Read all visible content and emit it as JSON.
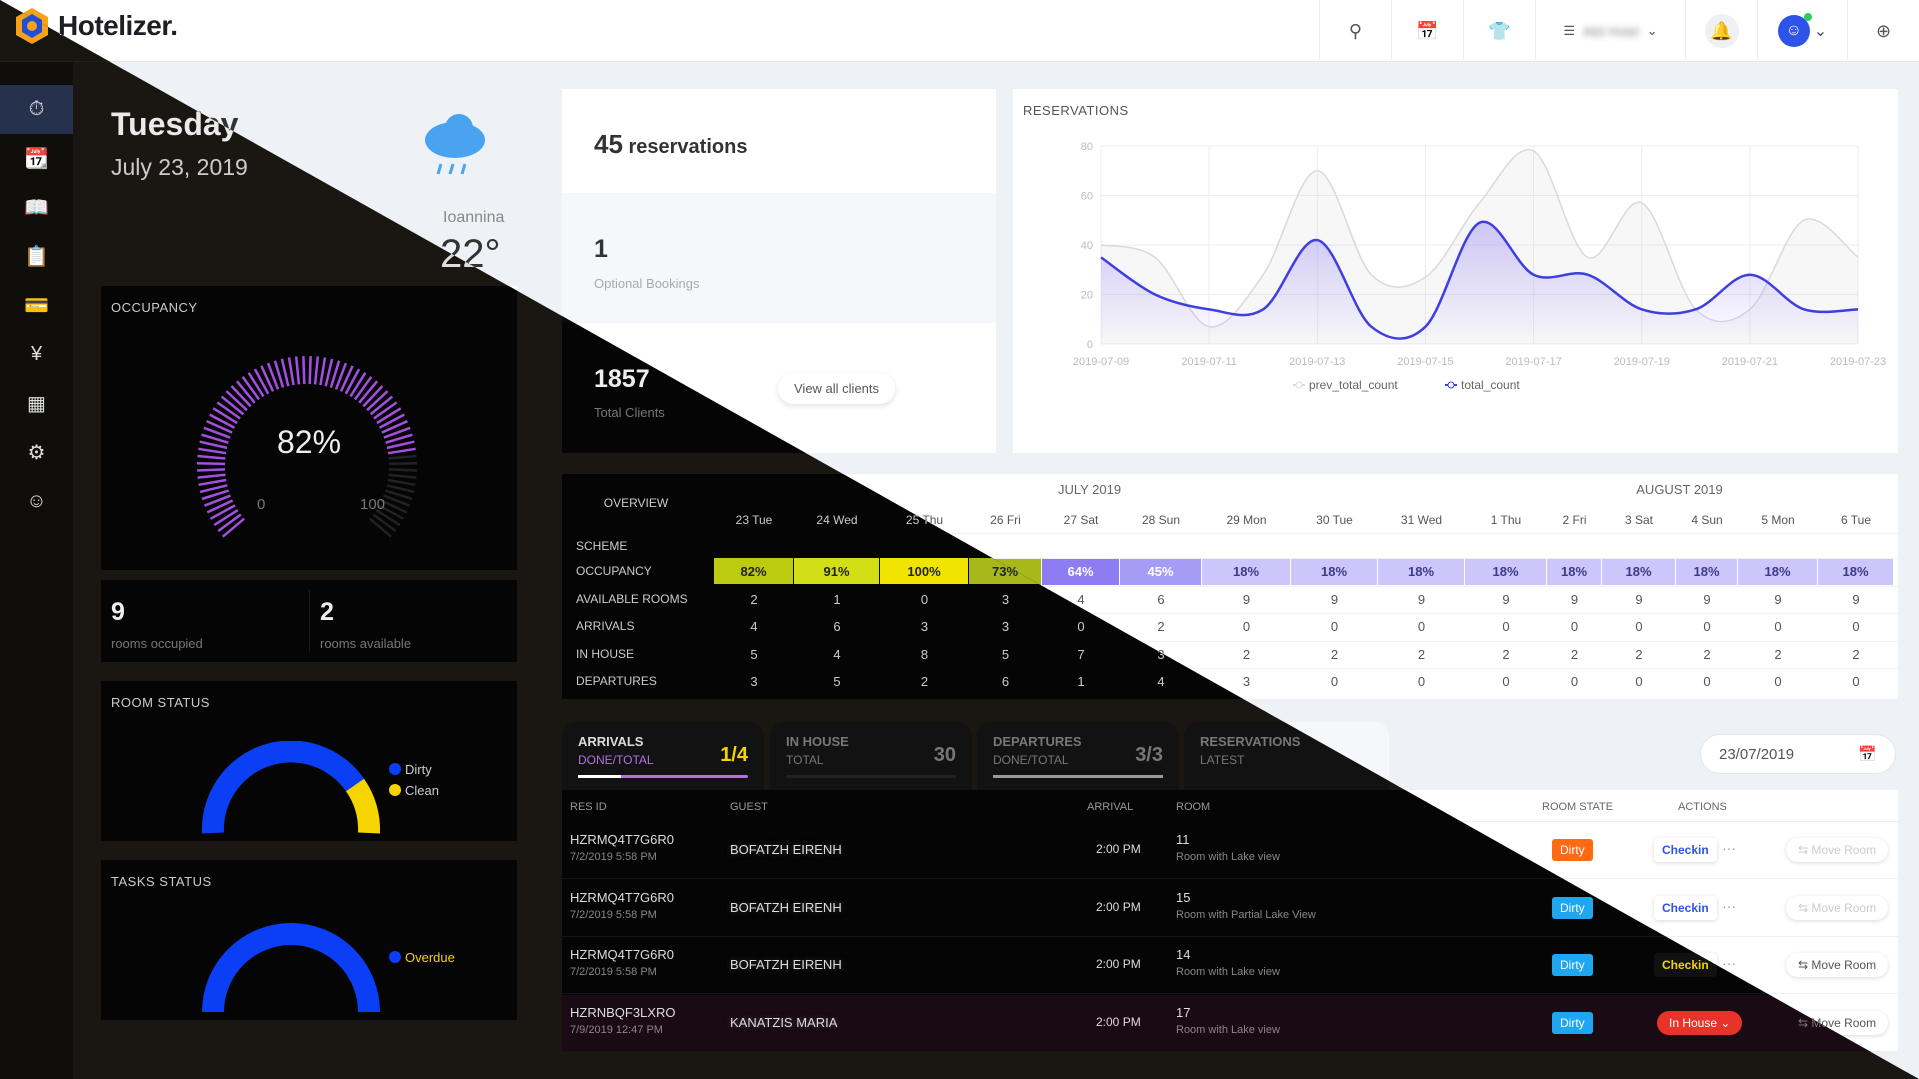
{
  "app": {
    "name": "Hotelizer."
  },
  "topbar": {
    "hotel_name": "Akti Hotel",
    "icons": [
      "search-icon",
      "calendar-icon",
      "shirt-icon",
      "list-icon",
      "bell-icon",
      "user-icon",
      "plus-circle-icon"
    ]
  },
  "sidebar": {
    "items": [
      "dashboard-icon",
      "calendar-icon",
      "book-icon",
      "booking-icon",
      "card-icon",
      "yen-icon",
      "grid-icon",
      "gear-icon",
      "user-icon"
    ]
  },
  "date_block": {
    "weekday": "Tuesday",
    "date": "July 23, 2019",
    "city": "Ioannina",
    "temperature": "22°",
    "weather_icon": "rain-cloud-icon"
  },
  "occupancy": {
    "label": "OCCUPANCY",
    "value": "82%",
    "value_num": 82,
    "min": "0",
    "max": "100"
  },
  "rooms": {
    "occupied": "9",
    "occupied_label": "rooms occupied",
    "available": "2",
    "available_label": "rooms available"
  },
  "room_status": {
    "label": "ROOM STATUS",
    "legend": [
      {
        "name": "Dirty",
        "color": "#0a3ff5"
      },
      {
        "name": "Clean",
        "color": "#f5d400"
      }
    ]
  },
  "tasks_status": {
    "label": "TASKS STATUS",
    "legend": [
      {
        "name": "Overdue",
        "color": "#0a3ff5"
      }
    ]
  },
  "summary": {
    "reservations_num": "45",
    "reservations_label": "reservations",
    "optional_num": "1",
    "optional_label": "Optional Bookings",
    "clients_num": "1857",
    "clients_label": "Total Clients",
    "view_all": "View all clients"
  },
  "chart_data": {
    "type": "line",
    "title": "RESERVATIONS",
    "x": [
      "2019-07-09",
      "2019-07-10",
      "2019-07-11",
      "2019-07-12",
      "2019-07-13",
      "2019-07-14",
      "2019-07-15",
      "2019-07-16",
      "2019-07-17",
      "2019-07-18",
      "2019-07-19",
      "2019-07-20",
      "2019-07-21",
      "2019-07-22",
      "2019-07-23"
    ],
    "xticks": [
      "2019-07-09",
      "2019-07-11",
      "2019-07-13",
      "2019-07-15",
      "2019-07-17",
      "2019-07-19",
      "2019-07-21",
      "2019-07-23"
    ],
    "yticks": [
      0,
      20,
      40,
      60,
      80
    ],
    "ylim": [
      0,
      80
    ],
    "series": [
      {
        "name": "prev_total_count",
        "color": "#d9d9de",
        "values": [
          40,
          35,
          7,
          28,
          70,
          28,
          27,
          57,
          78,
          35,
          57,
          14,
          14,
          50,
          35
        ]
      },
      {
        "name": "total_count",
        "color": "#3f3ee0",
        "values": [
          35,
          20,
          14,
          14,
          42,
          7,
          7,
          49,
          28,
          28,
          14,
          14,
          28,
          14,
          14
        ]
      }
    ],
    "legend": "bottom"
  },
  "overview": {
    "label": "OVERVIEW",
    "months": [
      "JULY 2019",
      "AUGUST 2019"
    ],
    "days": [
      "23 Tue",
      "24 Wed",
      "25 Thu",
      "26 Fri",
      "27 Sat",
      "28 Sun",
      "29 Mon",
      "30 Tue",
      "31 Wed",
      "1 Thu",
      "2 Fri",
      "3 Sat",
      "4 Sun",
      "5 Mon",
      "6 Tue"
    ],
    "row_labels": [
      "SCHEME",
      "OCCUPANCY",
      "AVAILABLE ROOMS",
      "ARRIVALS",
      "IN HOUSE",
      "DEPARTURES"
    ],
    "occupancy": [
      "82%",
      "91%",
      "100%",
      "73%",
      "64%",
      "45%",
      "18%",
      "18%",
      "18%",
      "18%",
      "18%",
      "18%",
      "18%",
      "18%",
      "18%"
    ],
    "occupancy_colors": [
      "#bccb10",
      "#d3df16",
      "#f1e400",
      "#a8b81a",
      "#8d7cf2",
      "#a79cf5",
      "#ccc6fa",
      "#ccc6fa",
      "#ccc6fa",
      "#ccc6fa",
      "#ccc6fa",
      "#ccc6fa",
      "#ccc6fa",
      "#ccc6fa",
      "#ccc6fa"
    ],
    "available_rooms": [
      "2",
      "1",
      "0",
      "3",
      "4",
      "6",
      "9",
      "9",
      "9",
      "9",
      "9",
      "9",
      "9",
      "9",
      "9"
    ],
    "arrivals": [
      "4",
      "6",
      "3",
      "3",
      "0",
      "2",
      "0",
      "0",
      "0",
      "0",
      "0",
      "0",
      "0",
      "0",
      "0"
    ],
    "in_house": [
      "5",
      "4",
      "8",
      "5",
      "7",
      "3",
      "2",
      "2",
      "2",
      "2",
      "2",
      "2",
      "2",
      "2",
      "2"
    ],
    "departures": [
      "3",
      "5",
      "2",
      "6",
      "1",
      "4",
      "3",
      "0",
      "0",
      "0",
      "0",
      "0",
      "0",
      "0",
      "0"
    ]
  },
  "tabs": [
    {
      "title": "ARRIVALS",
      "sub": "DONE/TOTAL",
      "value": "1/4"
    },
    {
      "title": "IN HOUSE",
      "sub": "TOTAL",
      "value": "30"
    },
    {
      "title": "DEPARTURES",
      "sub": "DONE/TOTAL",
      "value": "3/3"
    },
    {
      "title": "RESERVATIONS",
      "sub": "LATEST",
      "value": ""
    }
  ],
  "date_filter": {
    "value": "23/07/2019"
  },
  "arrivals_table": {
    "headers": {
      "res_id": "RES ID",
      "guest": "GUEST",
      "arrival": "ARRIVAL",
      "room": "ROOM",
      "room_state": "ROOM STATE",
      "actions": "ACTIONS"
    },
    "rows": [
      {
        "res_id": "HZRMQ4T7G6R0",
        "date": "7/2/2019 5:58 PM",
        "guest": "BOFATZH EIRENH",
        "arrival": "2:00 PM",
        "room": "11",
        "room_type": "Room with Lake view",
        "state": "Dirty",
        "state_color": "orange",
        "action": "Checkin",
        "move": "Move Room"
      },
      {
        "res_id": "HZRMQ4T7G6R0",
        "date": "7/2/2019 5:58 PM",
        "guest": "BOFATZH EIRENH",
        "arrival": "2:00 PM",
        "room": "15",
        "room_type": "Room with Partial Lake View",
        "state": "Dirty",
        "state_color": "blue",
        "action": "Checkin",
        "move": "Move Room"
      },
      {
        "res_id": "HZRMQ4T7G6R0",
        "date": "7/2/2019 5:58 PM",
        "guest": "BOFATZH EIRENH",
        "arrival": "2:00 PM",
        "room": "14",
        "room_type": "Room with Lake view",
        "state": "Dirty",
        "state_color": "blue",
        "action": "Checkin",
        "move": "Move Room"
      },
      {
        "res_id": "HZRNBQF3LXRO",
        "date": "7/9/2019 12:47 PM",
        "guest": "KANATZIS MARIA",
        "arrival": "2:00 PM",
        "room": "17",
        "room_type": "Room with Lake view",
        "state": "Dirty",
        "state_color": "blue",
        "action": "In House",
        "move": "Move Room"
      }
    ]
  }
}
